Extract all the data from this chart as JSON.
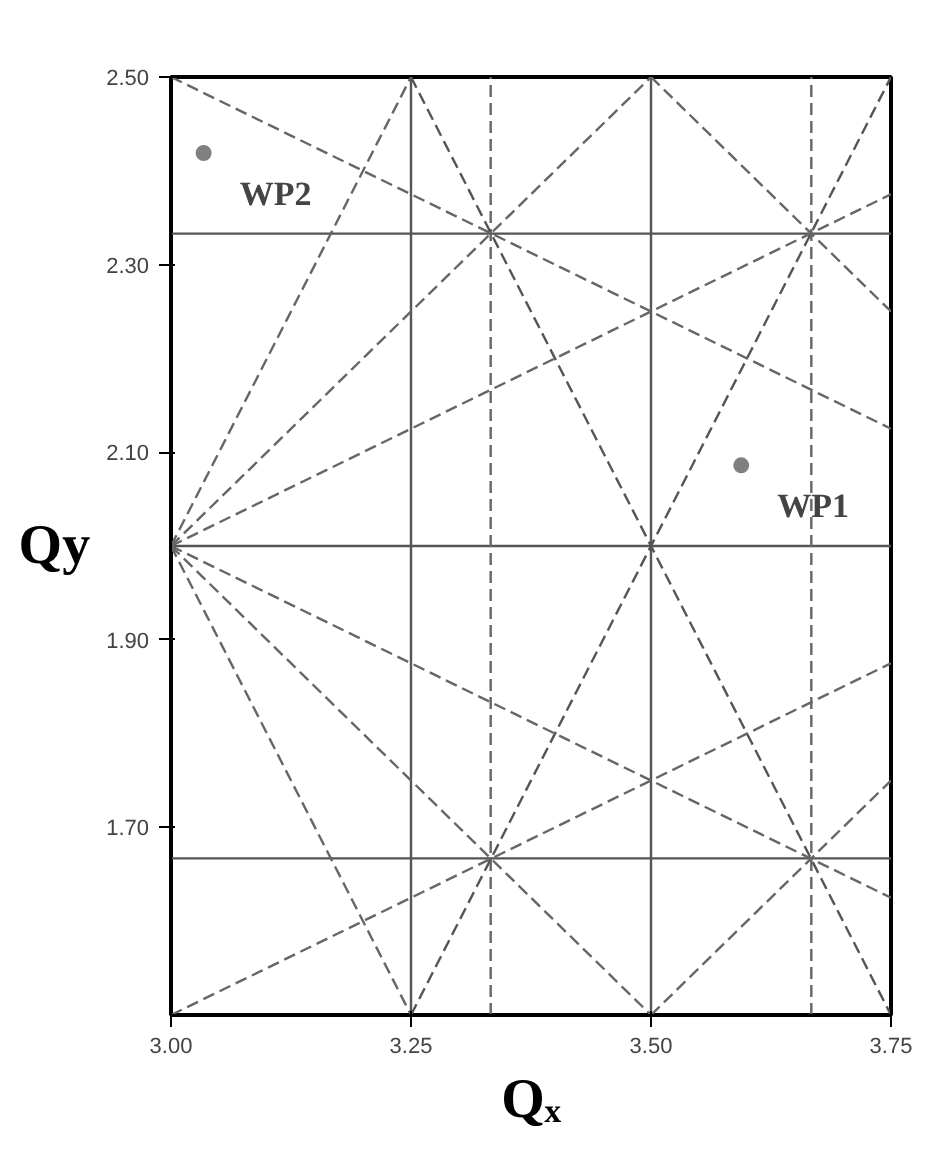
{
  "chart_data": {
    "type": "line",
    "xlabel": "Qₓ",
    "ylabel": "Qy",
    "xlim": [
      3.0,
      3.75
    ],
    "ylim": [
      1.5,
      2.5
    ],
    "xticks": [
      {
        "value": 3.0,
        "label": "3.00"
      },
      {
        "value": 3.25,
        "label": "3.25"
      },
      {
        "value": 3.5,
        "label": "3.50"
      },
      {
        "value": 3.75,
        "label": "3.75"
      }
    ],
    "yticks": [
      {
        "value": 1.7,
        "label": "1.70"
      },
      {
        "value": 1.9,
        "label": "1.90"
      },
      {
        "value": 2.1,
        "label": "2.10"
      },
      {
        "value": 2.3,
        "label": "2.30"
      },
      {
        "value": 2.5,
        "label": "2.50"
      }
    ],
    "grid": false,
    "marker": "none",
    "series": [
      {
        "color": "#555555",
        "line_style": "solid",
        "x": [
          3.0,
          3.75
        ],
        "values": [
          2.0,
          2.0
        ]
      },
      {
        "color": "#555555",
        "line_style": "solid",
        "x": [
          3.0,
          3.75
        ],
        "values": [
          2.333,
          2.333
        ]
      },
      {
        "color": "#555555",
        "line_style": "solid",
        "x": [
          3.0,
          3.75
        ],
        "values": [
          1.667,
          1.667
        ]
      },
      {
        "color": "#555555",
        "line_style": "solid",
        "x": [
          3.25,
          3.25
        ],
        "values": [
          1.5,
          2.5
        ]
      },
      {
        "color": "#555555",
        "line_style": "solid",
        "x": [
          3.5,
          3.5
        ],
        "values": [
          1.5,
          2.5
        ]
      },
      {
        "color": "#666666",
        "line_style": "dashed",
        "x": [
          3.333,
          3.333
        ],
        "values": [
          1.5,
          2.5
        ]
      },
      {
        "color": "#666666",
        "line_style": "dashed",
        "x": [
          3.667,
          3.667
        ],
        "values": [
          1.5,
          2.5
        ]
      },
      {
        "color": "#666666",
        "line_style": "dashed",
        "x": [
          3.0,
          3.25
        ],
        "values": [
          2.0,
          2.5
        ]
      },
      {
        "color": "#666666",
        "line_style": "dashed",
        "x": [
          3.0,
          3.5
        ],
        "values": [
          2.0,
          2.5
        ]
      },
      {
        "color": "#666666",
        "line_style": "dashed",
        "x": [
          3.0,
          3.75
        ],
        "values": [
          2.0,
          2.375
        ]
      },
      {
        "color": "#666666",
        "line_style": "dashed",
        "x": [
          3.0,
          3.25
        ],
        "values": [
          2.0,
          1.5
        ]
      },
      {
        "color": "#666666",
        "line_style": "dashed",
        "x": [
          3.0,
          3.5
        ],
        "values": [
          2.0,
          1.5
        ]
      },
      {
        "color": "#666666",
        "line_style": "dashed",
        "x": [
          3.0,
          3.75
        ],
        "values": [
          2.0,
          1.625
        ]
      },
      {
        "color": "#666666",
        "line_style": "dashed",
        "x": [
          3.0,
          3.75
        ],
        "values": [
          2.5,
          2.125
        ]
      },
      {
        "color": "#666666",
        "line_style": "dashed",
        "x": [
          3.0,
          3.75
        ],
        "values": [
          1.5,
          1.875
        ]
      },
      {
        "color": "#555555",
        "line_style": "dashed",
        "x": [
          3.25,
          3.75
        ],
        "values": [
          2.5,
          1.5
        ]
      },
      {
        "color": "#555555",
        "line_style": "dashed",
        "x": [
          3.25,
          3.75
        ],
        "values": [
          1.5,
          2.5
        ]
      },
      {
        "color": "#666666",
        "line_style": "dashed",
        "x": [
          3.5,
          3.75
        ],
        "values": [
          2.5,
          2.25
        ]
      },
      {
        "color": "#666666",
        "line_style": "dashed",
        "x": [
          3.5,
          3.75
        ],
        "values": [
          1.5,
          1.75
        ]
      },
      {
        "type": "scatter",
        "marker": "circle",
        "color": "#808080",
        "x": [
          3.594,
          3.034
        ],
        "values": [
          2.086,
          2.419
        ]
      }
    ],
    "annotations": [
      {
        "text": "WP1",
        "x": 3.594,
        "y": 2.086
      },
      {
        "text": "WP2",
        "x": 3.034,
        "y": 2.419
      }
    ]
  }
}
